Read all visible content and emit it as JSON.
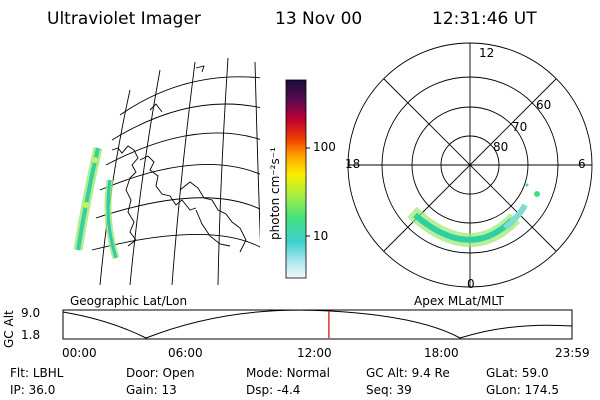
{
  "header": {
    "title": "Ultraviolet Imager",
    "date": "13 Nov 00",
    "time": "12:31:46 UT"
  },
  "colorbar": {
    "unit_label": "photon cm⁻²s⁻¹",
    "ticks": [
      "100",
      "10"
    ]
  },
  "left_panel": {
    "caption": "Geographic Lat/Lon"
  },
  "right_panel": {
    "caption": "Apex MLat/MLT",
    "mlt_labels": {
      "top": "12",
      "left": "18",
      "right": "6",
      "bottom": "0"
    },
    "lat_labels": [
      "60",
      "70",
      "80"
    ]
  },
  "timeline": {
    "axis_label": "GC Alt",
    "y_ticks": [
      "9.0",
      "1.8"
    ],
    "x_ticks": [
      "00:00",
      "06:00",
      "12:00",
      "18:00",
      "23:59"
    ],
    "current_time_fraction": 0.5224
  },
  "info_rows": [
    [
      {
        "key": "Flt:",
        "value": "LBHL"
      },
      {
        "key": "Door:",
        "value": "Open"
      },
      {
        "key": "Mode:",
        "value": "Normal"
      },
      {
        "key": "GC Alt:",
        "value": "9.4 Re"
      },
      {
        "key": "GLat:",
        "value": "59.0"
      }
    ],
    [
      {
        "key": "IP:",
        "value": "36.0"
      },
      {
        "key": "Gain:",
        "value": "13"
      },
      {
        "key": "Dsp:",
        "value": "-4.4"
      },
      {
        "key": "Seq:",
        "value": "39"
      },
      {
        "key": "GLon:",
        "value": "174.5"
      }
    ]
  ],
  "colors": {
    "marker": "#e00000"
  }
}
